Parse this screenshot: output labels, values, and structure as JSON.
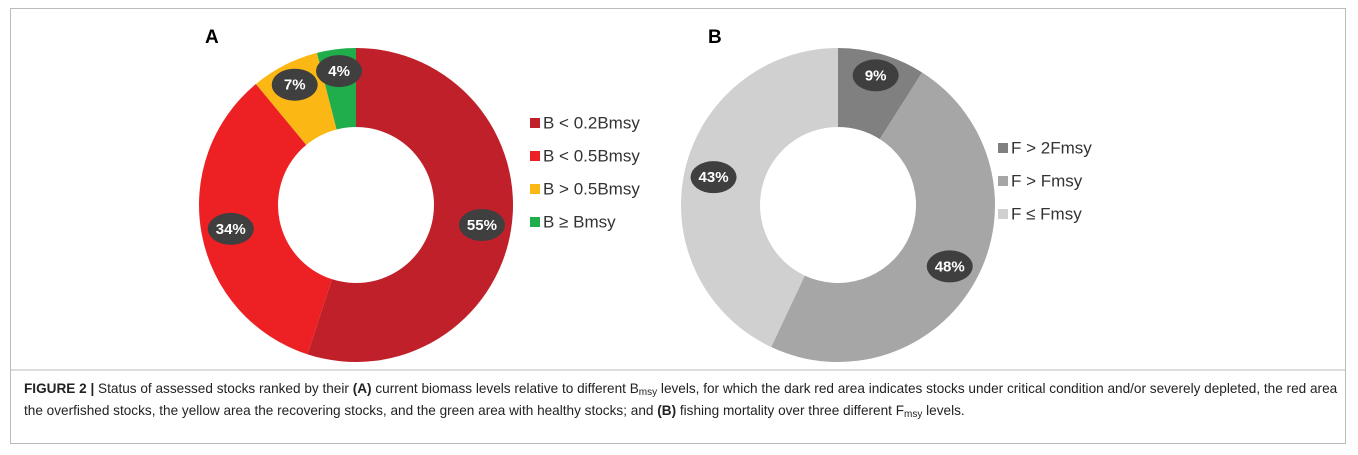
{
  "chart_data": [
    {
      "type": "donut",
      "label": "A",
      "categories": [
        "B < 0.2Bmsy",
        "B < 0.5Bmsy",
        "B > 0.5Bmsy",
        "B ≥ Bmsy"
      ],
      "values": [
        55,
        34,
        7,
        4
      ],
      "value_labels": [
        "55%",
        "34%",
        "7%",
        "4%"
      ],
      "colors": [
        "#c0202a",
        "#ed2024",
        "#fbb714",
        "#1fae4b"
      ]
    },
    {
      "type": "donut",
      "label": "B",
      "categories": [
        "F > 2Fmsy",
        "F > Fmsy",
        "F ≤ Fmsy"
      ],
      "values": [
        9,
        48,
        43
      ],
      "value_labels": [
        "9%",
        "48%",
        "43%"
      ],
      "colors": [
        "#808080",
        "#a6a6a6",
        "#d0d0d0"
      ]
    }
  ],
  "caption": [
    {
      "text": "FIGURE 2 |",
      "bold": true
    },
    {
      "text": " Status of assessed stocks ranked by their "
    },
    {
      "text": "(A)",
      "bold": true
    },
    {
      "text": " current biomass levels relative to different B"
    },
    {
      "text": "msy",
      "sub": true
    },
    {
      "text": " levels, for which the dark red area indicates stocks under critical condition and/or severely depleted, the red area the overfished stocks, the yellow area the recovering stocks, and the green area with healthy stocks; and "
    },
    {
      "text": "(B)",
      "bold": true
    },
    {
      "text": " fishing mortality over three different F"
    },
    {
      "text": "msy",
      "sub": true
    },
    {
      "text": " levels."
    }
  ]
}
